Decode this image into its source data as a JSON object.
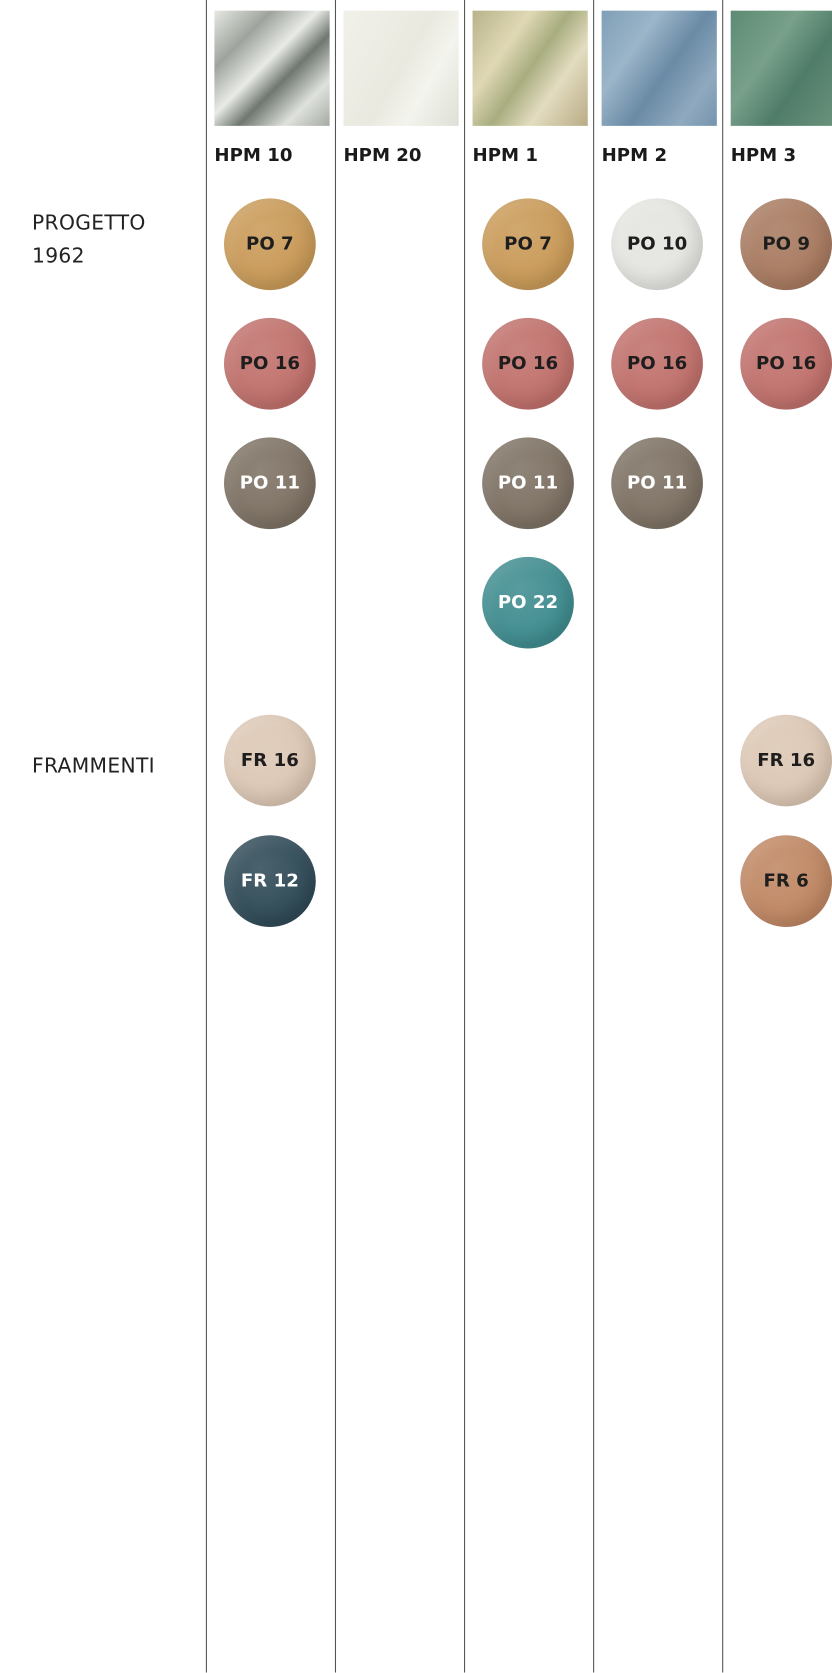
{
  "row_labels": {
    "progetto": "PROGETTO 1962",
    "frammenti": "FRAMMENTI"
  },
  "columns": [
    {
      "name": "HPM 10",
      "progetto": [
        {
          "label": "PO 7",
          "color": "#c99a58"
        },
        {
          "label": "PO 16",
          "color": "#c0706b"
        },
        {
          "label": "PO 11",
          "color": "#7d7163"
        }
      ],
      "frammenti": [
        {
          "label": "FR 16",
          "color": "#dcc7b4"
        },
        {
          "label": "FR 12",
          "color": "#2f4a57"
        }
      ]
    },
    {
      "name": "HPM 20",
      "progetto": [],
      "frammenti": []
    },
    {
      "name": "HPM 1",
      "progetto": [
        {
          "label": "PO 7",
          "color": "#c99a58"
        },
        {
          "label": "PO 16",
          "color": "#c0706b"
        },
        {
          "label": "PO 11",
          "color": "#7d7163"
        },
        {
          "label": "PO 22",
          "color": "#3f8c8f"
        }
      ],
      "frammenti": []
    },
    {
      "name": "HPM 2",
      "progetto": [
        {
          "label": "PO 10",
          "color": "#e4e4e0"
        },
        {
          "label": "PO 16",
          "color": "#c0706b"
        },
        {
          "label": "PO 11",
          "color": "#7d7163"
        }
      ],
      "frammenti": []
    },
    {
      "name": "HPM 3",
      "progetto": [
        {
          "label": "PO 9",
          "color": "#a87a60"
        },
        {
          "label": "PO 16",
          "color": "#c0706b"
        }
      ],
      "frammenti": [
        {
          "label": "FR 16",
          "color": "#dcc7b4"
        },
        {
          "label": "FR 6",
          "color": "#bf8763"
        }
      ]
    }
  ]
}
